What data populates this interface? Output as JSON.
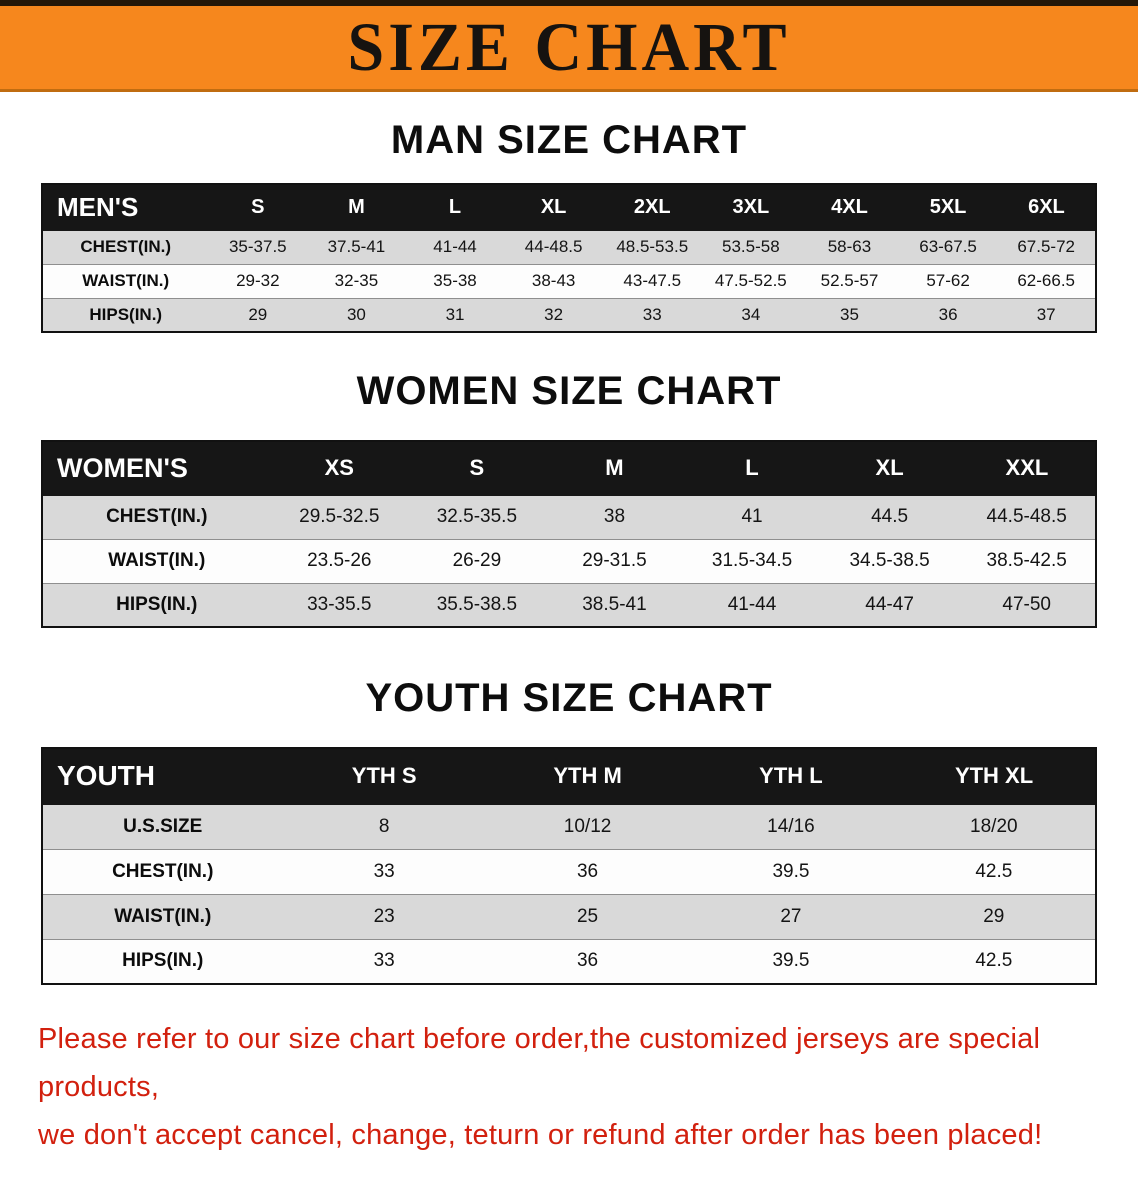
{
  "banner": {
    "title": "SIZE CHART",
    "bg_color": "#f6871d",
    "text_color": "#161310"
  },
  "chart_data": [
    {
      "type": "table",
      "title": "MAN SIZE CHART",
      "columns": [
        "MEN'S",
        "S",
        "M",
        "L",
        "XL",
        "2XL",
        "3XL",
        "4XL",
        "5XL",
        "6XL"
      ],
      "rows": [
        [
          "CHEST(IN.)",
          "35-37.5",
          "37.5-41",
          "41-44",
          "44-48.5",
          "48.5-53.5",
          "53.5-58",
          "58-63",
          "63-67.5",
          "67.5-72"
        ],
        [
          "WAIST(IN.)",
          "29-32",
          "32-35",
          "35-38",
          "38-43",
          "43-47.5",
          "47.5-52.5",
          "52.5-57",
          "57-62",
          "62-66.5"
        ],
        [
          "HIPS(IN.)",
          "29",
          "30",
          "31",
          "32",
          "33",
          "34",
          "35",
          "36",
          "37"
        ]
      ]
    },
    {
      "type": "table",
      "title": "WOMEN SIZE CHART",
      "columns": [
        "WOMEN'S",
        "XS",
        "S",
        "M",
        "L",
        "XL",
        "XXL"
      ],
      "rows": [
        [
          "CHEST(IN.)",
          "29.5-32.5",
          "32.5-35.5",
          "38",
          "41",
          "44.5",
          "44.5-48.5"
        ],
        [
          "WAIST(IN.)",
          "23.5-26",
          "26-29",
          "29-31.5",
          "31.5-34.5",
          "34.5-38.5",
          "38.5-42.5"
        ],
        [
          "HIPS(IN.)",
          "33-35.5",
          "35.5-38.5",
          "38.5-41",
          "41-44",
          "44-47",
          "47-50"
        ]
      ]
    },
    {
      "type": "table",
      "title": "YOUTH SIZE CHART",
      "columns": [
        "YOUTH",
        "YTH S",
        "YTH M",
        "YTH L",
        "YTH XL"
      ],
      "rows": [
        [
          "U.S.SIZE",
          "8",
          "10/12",
          "14/16",
          "18/20"
        ],
        [
          "CHEST(IN.)",
          "33",
          "36",
          "39.5",
          "42.5"
        ],
        [
          "WAIST(IN.)",
          "23",
          "25",
          "27",
          "29"
        ],
        [
          "HIPS(IN.)",
          "33",
          "36",
          "39.5",
          "42.5"
        ]
      ]
    }
  ],
  "footer": {
    "line1": "Please refer to our size chart before order,the customized jerseys are special products,",
    "line2": "we don't accept cancel, change, teturn or refund after order has been placed!",
    "text_color": "#d2200e"
  }
}
